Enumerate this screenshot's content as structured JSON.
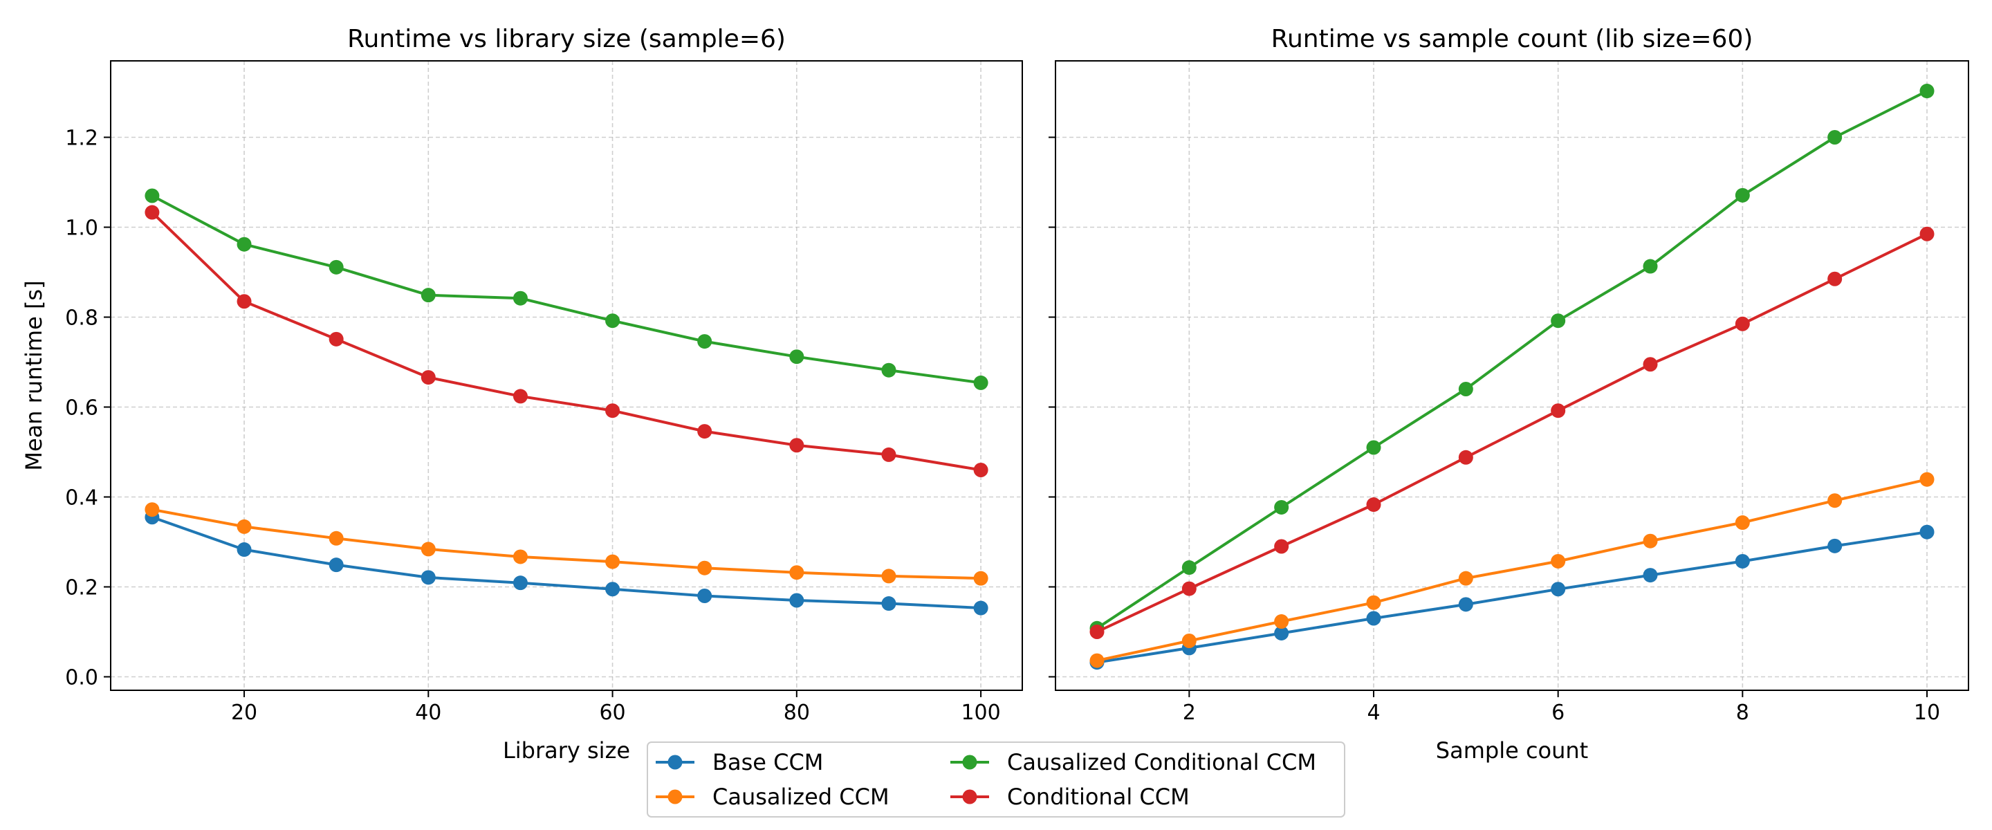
{
  "chart_data": [
    {
      "type": "line",
      "title": "Runtime vs library size (sample=6)",
      "xlabel": "Library size",
      "ylabel": "Mean runtime [s]",
      "x": [
        10,
        20,
        30,
        40,
        50,
        60,
        70,
        80,
        90,
        100
      ],
      "xlim": [
        5.5,
        104.5
      ],
      "ylim": [
        -0.03,
        1.37
      ],
      "xticks": [
        20,
        40,
        60,
        80,
        100
      ],
      "yticks": [
        0.0,
        0.2,
        0.4,
        0.6,
        0.8,
        1.0,
        1.2
      ],
      "ytick_labels": [
        "0.0",
        "0.2",
        "0.4",
        "0.6",
        "0.8",
        "1.0",
        "1.2"
      ],
      "grid": true,
      "series": [
        {
          "name": "Base CCM",
          "color": "#1f77b4",
          "values": [
            0.355,
            0.283,
            0.249,
            0.221,
            0.209,
            0.195,
            0.18,
            0.17,
            0.163,
            0.153
          ]
        },
        {
          "name": "Causalized CCM",
          "color": "#ff7f0e",
          "values": [
            0.372,
            0.334,
            0.308,
            0.284,
            0.267,
            0.256,
            0.242,
            0.232,
            0.224,
            0.219
          ]
        },
        {
          "name": "Causalized Conditional CCM",
          "color": "#2ca02c",
          "values": [
            1.07,
            0.962,
            0.911,
            0.849,
            0.842,
            0.792,
            0.746,
            0.712,
            0.682,
            0.654
          ]
        },
        {
          "name": "Conditional CCM",
          "color": "#d62728",
          "values": [
            1.033,
            0.835,
            0.751,
            0.666,
            0.624,
            0.592,
            0.546,
            0.515,
            0.494,
            0.46
          ]
        }
      ]
    },
    {
      "type": "line",
      "title": "Runtime vs sample count (lib size=60)",
      "xlabel": "Sample count",
      "ylabel": "",
      "x": [
        1,
        2,
        3,
        4,
        5,
        6,
        7,
        8,
        9,
        10
      ],
      "xlim": [
        0.55,
        10.45
      ],
      "ylim": [
        -0.03,
        1.37
      ],
      "xticks": [
        2,
        4,
        6,
        8,
        10
      ],
      "yticks": [
        0.0,
        0.2,
        0.4,
        0.6,
        0.8,
        1.0,
        1.2
      ],
      "ytick_labels": [],
      "grid": true,
      "series": [
        {
          "name": "Base CCM",
          "color": "#1f77b4",
          "values": [
            0.032,
            0.064,
            0.097,
            0.13,
            0.161,
            0.195,
            0.226,
            0.257,
            0.291,
            0.322
          ]
        },
        {
          "name": "Causalized CCM",
          "color": "#ff7f0e",
          "values": [
            0.036,
            0.08,
            0.123,
            0.165,
            0.219,
            0.257,
            0.302,
            0.343,
            0.392,
            0.439
          ]
        },
        {
          "name": "Causalized Conditional CCM",
          "color": "#2ca02c",
          "values": [
            0.108,
            0.243,
            0.377,
            0.51,
            0.64,
            0.792,
            0.913,
            1.071,
            1.2,
            1.303
          ]
        },
        {
          "name": "Conditional CCM",
          "color": "#d62728",
          "values": [
            0.1,
            0.196,
            0.29,
            0.383,
            0.488,
            0.592,
            0.695,
            0.785,
            0.885,
            0.985
          ]
        }
      ]
    }
  ],
  "legend": {
    "location": "bottom-center",
    "columns": 2,
    "entries": [
      "Base CCM",
      "Causalized CCM",
      "Causalized Conditional CCM",
      "Conditional CCM"
    ]
  }
}
